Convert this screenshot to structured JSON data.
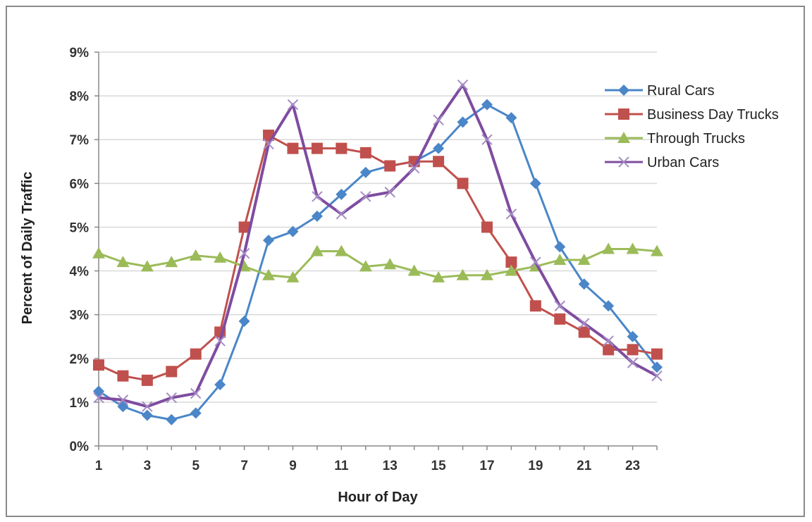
{
  "chart_data": {
    "type": "line",
    "title": "",
    "xlabel": "Hour of Day",
    "ylabel": "Percent of Daily Traffic",
    "x": [
      1,
      2,
      3,
      4,
      5,
      6,
      7,
      8,
      9,
      10,
      11,
      12,
      13,
      14,
      15,
      16,
      17,
      18,
      19,
      20,
      21,
      22,
      23,
      24
    ],
    "x_tick_labels": [
      "1",
      "3",
      "5",
      "7",
      "9",
      "11",
      "13",
      "15",
      "17",
      "19",
      "21",
      "23"
    ],
    "y_tick_labels": [
      "0%",
      "1%",
      "2%",
      "3%",
      "4%",
      "5%",
      "6%",
      "7%",
      "8%",
      "9%"
    ],
    "ylim": [
      0,
      9
    ],
    "xlim": [
      1,
      24
    ],
    "grid": "horizontal",
    "legend_position": "right",
    "series": [
      {
        "name": "Rural Cars",
        "color": "#4a86c8",
        "marker": "diamond",
        "values": [
          1.25,
          0.9,
          0.7,
          0.6,
          0.75,
          1.4,
          2.85,
          4.7,
          4.9,
          5.25,
          5.75,
          6.25,
          6.4,
          6.5,
          6.8,
          7.4,
          7.8,
          7.5,
          6.0,
          4.55,
          3.7,
          3.2,
          2.5,
          1.8
        ]
      },
      {
        "name": "Business Day Trucks",
        "color": "#c0504d",
        "marker": "square",
        "values": [
          1.85,
          1.6,
          1.5,
          1.7,
          2.1,
          2.6,
          5.0,
          7.1,
          6.8,
          6.8,
          6.8,
          6.7,
          6.4,
          6.5,
          6.5,
          6.0,
          5.0,
          4.2,
          3.2,
          2.9,
          2.6,
          2.2,
          2.2,
          2.1
        ]
      },
      {
        "name": "Through Trucks",
        "color": "#9bbb59",
        "marker": "triangle",
        "values": [
          4.4,
          4.2,
          4.1,
          4.2,
          4.35,
          4.3,
          4.1,
          3.9,
          3.85,
          4.45,
          4.45,
          4.1,
          4.15,
          4.0,
          3.85,
          3.9,
          3.9,
          4.0,
          4.1,
          4.25,
          4.25,
          4.5,
          4.5,
          4.45
        ]
      },
      {
        "name": "Urban Cars",
        "color": "#7f4ca0",
        "marker": "x",
        "values": [
          1.1,
          1.05,
          0.9,
          1.1,
          1.2,
          2.4,
          4.4,
          6.9,
          7.8,
          5.7,
          5.3,
          5.7,
          5.8,
          6.35,
          7.45,
          8.25,
          7.0,
          5.3,
          4.2,
          3.2,
          2.8,
          2.4,
          1.9,
          1.6
        ]
      }
    ]
  }
}
